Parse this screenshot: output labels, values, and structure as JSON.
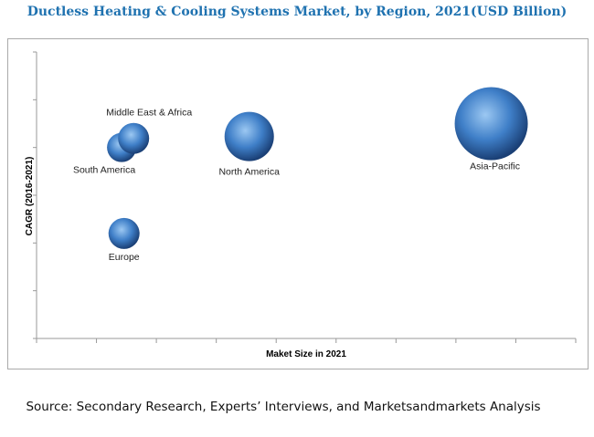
{
  "chart_data": {
    "type": "scatter",
    "subtype": "bubble",
    "title": "Ductless Heating & Cooling Systems Market, by Region, 2021(USD Billion)",
    "xlabel": "Maket Size in 2021",
    "ylabel": "CAGR (2016-2021)",
    "xlim": [
      0,
      9
    ],
    "ylim": [
      0,
      6
    ],
    "tick_labels_shown": false,
    "grid": false,
    "bubble_color": "#3f7fc8",
    "points": [
      {
        "label": "South America",
        "x": 1.42,
        "y": 4.0,
        "size": 16
      },
      {
        "label": "Middle East & Africa",
        "x": 1.62,
        "y": 4.19,
        "size": 17
      },
      {
        "label": "North America",
        "x": 3.55,
        "y": 4.23,
        "size": 27
      },
      {
        "label": "Asia-Pacific",
        "x": 7.59,
        "y": 4.5,
        "size": 40
      },
      {
        "label": "Europe",
        "x": 1.46,
        "y": 2.2,
        "size": 17
      }
    ]
  },
  "source": "Source: Secondary Research, Experts’ Interviews, and Marketsandmarkets Analysis"
}
